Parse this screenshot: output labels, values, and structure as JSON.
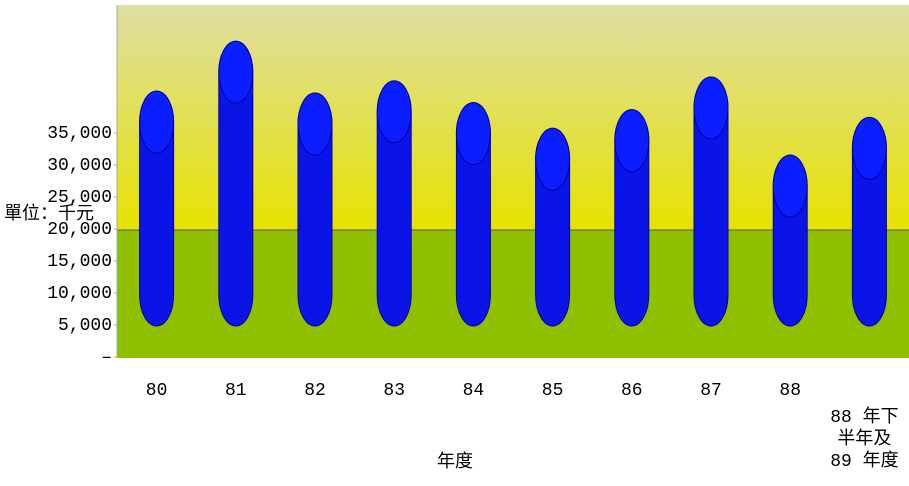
{
  "chart_data": {
    "type": "bar",
    "y_label": "單位：千元",
    "x_label": "年度",
    "categories": [
      "80",
      "81",
      "82",
      "83",
      "84",
      "85",
      "86",
      "87",
      "88",
      "88 年下\n半年及\n89 年度"
    ],
    "values": [
      36700,
      44500,
      36400,
      38300,
      34900,
      30900,
      33800,
      38900,
      26700,
      32600
    ],
    "color": "#0a14e6",
    "ylim": [
      0,
      55000
    ],
    "yticks": [
      {
        "value": 0,
        "label": "–"
      },
      {
        "value": 5000,
        "label": "5,000"
      },
      {
        "value": 10000,
        "label": "10,000"
      },
      {
        "value": 15000,
        "label": "15,000"
      },
      {
        "value": 20000,
        "label": "20,000"
      },
      {
        "value": 25000,
        "label": "25,000"
      },
      {
        "value": 30000,
        "label": "30,000"
      },
      {
        "value": 35000,
        "label": "35,000"
      }
    ],
    "grid": false
  }
}
